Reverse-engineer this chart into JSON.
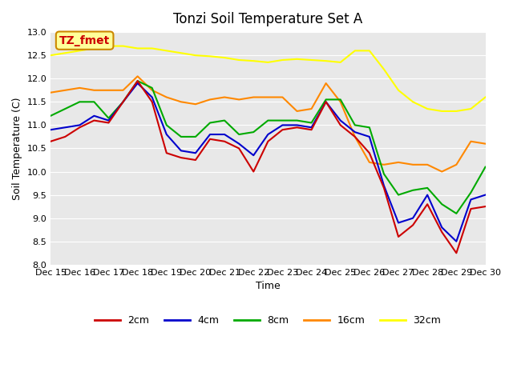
{
  "title": "Tonzi Soil Temperature Set A",
  "ylabel": "Soil Temperature (C)",
  "xlabel": "Time",
  "xlim": [
    0,
    15
  ],
  "ylim": [
    8.0,
    13.0
  ],
  "yticks": [
    8.0,
    8.5,
    9.0,
    9.5,
    10.0,
    10.5,
    11.0,
    11.5,
    12.0,
    12.5,
    13.0
  ],
  "xtick_labels": [
    "Dec 15",
    "Dec 16",
    "Dec 17",
    "Dec 18",
    "Dec 19",
    "Dec 20",
    "Dec 21",
    "Dec 22",
    "Dec 23",
    "Dec 24",
    "Dec 25",
    "Dec 26",
    "Dec 27",
    "Dec 28",
    "Dec 29",
    "Dec 30"
  ],
  "colors": {
    "2cm": "#cc0000",
    "4cm": "#0000cc",
    "8cm": "#00aa00",
    "16cm": "#ff8800",
    "32cm": "#ffff00"
  },
  "line_width": 1.5,
  "background_color": "#e8e8e8",
  "legend_box_color": "#ffff99",
  "legend_box_edge": "#cc8800",
  "annotation_text": "TZ_fmet",
  "annotation_color": "#cc0000",
  "x": [
    0,
    0.5,
    1,
    1.5,
    2,
    2.5,
    3,
    3.5,
    4,
    4.5,
    5,
    5.5,
    6,
    6.5,
    7,
    7.5,
    8,
    8.5,
    9,
    9.5,
    10,
    10.5,
    11,
    11.5,
    12,
    12.5,
    13,
    13.5,
    14,
    14.5,
    15
  ],
  "data_2cm": [
    10.65,
    10.75,
    10.95,
    11.1,
    11.05,
    11.5,
    11.95,
    11.5,
    10.4,
    10.3,
    10.25,
    10.7,
    10.65,
    10.5,
    10.0,
    10.65,
    10.9,
    10.95,
    10.9,
    11.5,
    11.0,
    10.75,
    10.4,
    9.65,
    8.6,
    8.85,
    9.3,
    8.7,
    8.25,
    9.2,
    9.25
  ],
  "data_4cm": [
    10.9,
    10.95,
    11.0,
    11.2,
    11.1,
    11.5,
    11.9,
    11.6,
    10.8,
    10.45,
    10.4,
    10.8,
    10.8,
    10.6,
    10.35,
    10.8,
    11.0,
    11.0,
    10.95,
    11.5,
    11.1,
    10.85,
    10.75,
    9.7,
    8.9,
    9.0,
    9.5,
    8.8,
    8.5,
    9.4,
    9.5
  ],
  "data_8cm": [
    11.2,
    11.35,
    11.5,
    11.5,
    11.15,
    11.5,
    11.95,
    11.8,
    11.0,
    10.75,
    10.75,
    11.05,
    11.1,
    10.8,
    10.85,
    11.1,
    11.1,
    11.1,
    11.05,
    11.55,
    11.55,
    11.0,
    10.95,
    9.95,
    9.5,
    9.6,
    9.65,
    9.3,
    9.1,
    9.55,
    10.1
  ],
  "data_16cm": [
    11.7,
    11.75,
    11.8,
    11.75,
    11.75,
    11.75,
    12.05,
    11.75,
    11.6,
    11.5,
    11.45,
    11.55,
    11.6,
    11.55,
    11.6,
    11.6,
    11.6,
    11.3,
    11.35,
    11.9,
    11.5,
    10.75,
    10.2,
    10.15,
    10.2,
    10.15,
    10.15,
    10.0,
    10.15,
    10.65,
    10.6
  ],
  "data_32cm": [
    12.5,
    12.55,
    12.6,
    12.65,
    12.7,
    12.7,
    12.65,
    12.65,
    12.6,
    12.55,
    12.5,
    12.48,
    12.45,
    12.4,
    12.38,
    12.35,
    12.4,
    12.42,
    12.4,
    12.38,
    12.35,
    12.6,
    12.6,
    12.2,
    11.75,
    11.5,
    11.35,
    11.3,
    11.3,
    11.35,
    11.6
  ]
}
